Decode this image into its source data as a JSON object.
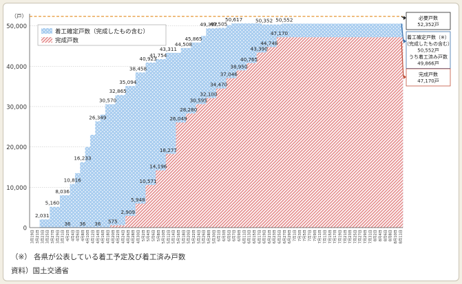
{
  "chart_data": {
    "type": "area",
    "y_unit": "（戸）",
    "ylim": [
      0,
      53000
    ],
    "y_ticks": [
      0,
      10000,
      20000,
      30000,
      40000,
      50000
    ],
    "y_tick_labels": [
      "0",
      "10,000",
      "20,000",
      "30,000",
      "40,000",
      "50,000"
    ],
    "x_labels": [
      "3月19日",
      "3月21日",
      "3月23日",
      "3月25日",
      "3月27日",
      "3月29日",
      "3月31日",
      "4月2日",
      "4月4日",
      "4月6日",
      "4月8日",
      "4月10日",
      "4月12日",
      "4月14日",
      "4月16日",
      "4月18日",
      "4月20日",
      "4月22日",
      "4月24日",
      "4月26日",
      "4月28日",
      "4月30日",
      "5月2日",
      "5月4日",
      "5月6日",
      "5月8日",
      "5月10日",
      "5月12日",
      "5月14日",
      "5月16日",
      "5月18日",
      "5月20日",
      "5月22日",
      "5月24日",
      "5月26日",
      "5月28日",
      "5月30日",
      "6月1日",
      "6月3日",
      "6月5日",
      "6月7日",
      "6月9日",
      "6月11日",
      "6月13日",
      "6月15日",
      "6月17日",
      "6月19日",
      "6月21日",
      "6月23日",
      "6月25日",
      "6月27日",
      "6月29日",
      "7月1日",
      "7月3日",
      "7月5日",
      "7月7日",
      "7月9日",
      "7月11日",
      "7月13日",
      "7月15日",
      "7月17日",
      "7月19日",
      "7月21日",
      "7月23日",
      "7月25日",
      "7月27日",
      "7月29日",
      "7月31日",
      "8月2日",
      "8月4日",
      "8月6日",
      "8月8日",
      "8月10日",
      "8月11日"
    ],
    "required_line": {
      "name": "必要戸数",
      "value": 52352
    },
    "series": [
      {
        "name": "着工確定戸数（完成したもの含む）",
        "color": "#a9cdef",
        "pattern": "dots",
        "values": [
          0,
          0,
          2031,
          2031,
          5160,
          5160,
          8036,
          8036,
          10816,
          13500,
          16233,
          20000,
          23000,
          26349,
          28000,
          30570,
          30570,
          32865,
          32865,
          35094,
          35094,
          38458,
          38458,
          40923,
          40923,
          41754,
          41754,
          43311,
          43311,
          43311,
          44508,
          44508,
          45865,
          45865,
          47500,
          49397,
          49397,
          49505,
          49505,
          50200,
          50617,
          50617,
          50617,
          50617,
          50617,
          50617,
          50352,
          50352,
          50352,
          50352,
          50552,
          50552,
          50552,
          50552,
          50552,
          50552,
          50552,
          50552,
          50552,
          50552,
          50552,
          50552,
          50552,
          50552,
          50552,
          50552,
          50552,
          50552,
          50552,
          50552,
          50552,
          50552,
          50552,
          50552
        ],
        "data_labels": [
          {
            "index": 2,
            "text": "2,031"
          },
          {
            "index": 4,
            "text": "5,160"
          },
          {
            "index": 6,
            "text": "8,036"
          },
          {
            "index": 8,
            "text": "10,816"
          },
          {
            "index": 10,
            "text": "16,233"
          },
          {
            "index": 13,
            "text": "26,349"
          },
          {
            "index": 15,
            "text": "30,570"
          },
          {
            "index": 17,
            "text": "32,865"
          },
          {
            "index": 19,
            "text": "35,094"
          },
          {
            "index": 21,
            "text": "38,458"
          },
          {
            "index": 23,
            "text": "40,923"
          },
          {
            "index": 25,
            "text": "41,754"
          },
          {
            "index": 27,
            "text": "43,311"
          },
          {
            "index": 30,
            "text": "44,508"
          },
          {
            "index": 32,
            "text": "45,865"
          },
          {
            "index": 35,
            "text": "49,397"
          },
          {
            "index": 37,
            "text": "49,505"
          },
          {
            "index": 40,
            "text": "50,617"
          },
          {
            "index": 46,
            "text": "50,352"
          },
          {
            "index": 50,
            "text": "50,552"
          }
        ]
      },
      {
        "name": "完成戸数",
        "color": "#e48a8a",
        "pattern": "hatch",
        "values": [
          0,
          0,
          0,
          0,
          0,
          0,
          0,
          36,
          36,
          36,
          36,
          36,
          36,
          36,
          36,
          36,
          575,
          575,
          575,
          2909,
          2909,
          5948,
          5948,
          10571,
          10571,
          14196,
          14196,
          18277,
          18277,
          26049,
          26049,
          28280,
          28280,
          30595,
          30595,
          32100,
          32100,
          34470,
          34470,
          37046,
          37046,
          38950,
          38950,
          40765,
          40765,
          43390,
          43390,
          44748,
          44748,
          47170,
          47170,
          47170,
          47170,
          47170,
          47170,
          47170,
          47170,
          47170,
          47170,
          47170,
          47170,
          47170,
          47170,
          47170,
          47170,
          47170,
          47170,
          47170,
          47170,
          47170,
          47170,
          47170,
          47170,
          47170
        ],
        "data_labels": [
          {
            "index": 7,
            "text": "36"
          },
          {
            "index": 10,
            "text": "36"
          },
          {
            "index": 13,
            "text": "36"
          },
          {
            "index": 16,
            "text": "575"
          },
          {
            "index": 19,
            "text": "2,909"
          },
          {
            "index": 21,
            "text": "5,948"
          },
          {
            "index": 23,
            "text": "10,571"
          },
          {
            "index": 25,
            "text": "14,196"
          },
          {
            "index": 27,
            "text": "18,277"
          },
          {
            "index": 29,
            "text": "26,049"
          },
          {
            "index": 31,
            "text": "28,280"
          },
          {
            "index": 33,
            "text": "30,595"
          },
          {
            "index": 35,
            "text": "32,100"
          },
          {
            "index": 37,
            "text": "34,470"
          },
          {
            "index": 39,
            "text": "37,046"
          },
          {
            "index": 41,
            "text": "38,950"
          },
          {
            "index": 43,
            "text": "40,765"
          },
          {
            "index": 45,
            "text": "43,390"
          },
          {
            "index": 47,
            "text": "44,748"
          },
          {
            "index": 49,
            "text": "47,170"
          }
        ]
      }
    ],
    "legend": {
      "placement": "top-left",
      "items": [
        "着工確定戸数（完成したもの含む）",
        "完成戸数"
      ]
    },
    "callouts": [
      {
        "kind": "required",
        "color": "#222222",
        "lines": [
          "必要戸数",
          "52,352戸"
        ]
      },
      {
        "kind": "confirmed",
        "color": "#3b6ea8",
        "lines": [
          "着工確定戸数（※）",
          "（完成したもの含む）",
          "50,552戸",
          "うち着工済み戸数",
          "49,866戸"
        ]
      },
      {
        "kind": "completed",
        "color": "#c0503a",
        "lines": [
          "完成戸数",
          "47,170戸"
        ]
      }
    ],
    "grid": true
  },
  "notes": {
    "footnote": "（※） 各県が公表している着工予定及び着工済み戸数",
    "source": "資料）国土交通省"
  }
}
